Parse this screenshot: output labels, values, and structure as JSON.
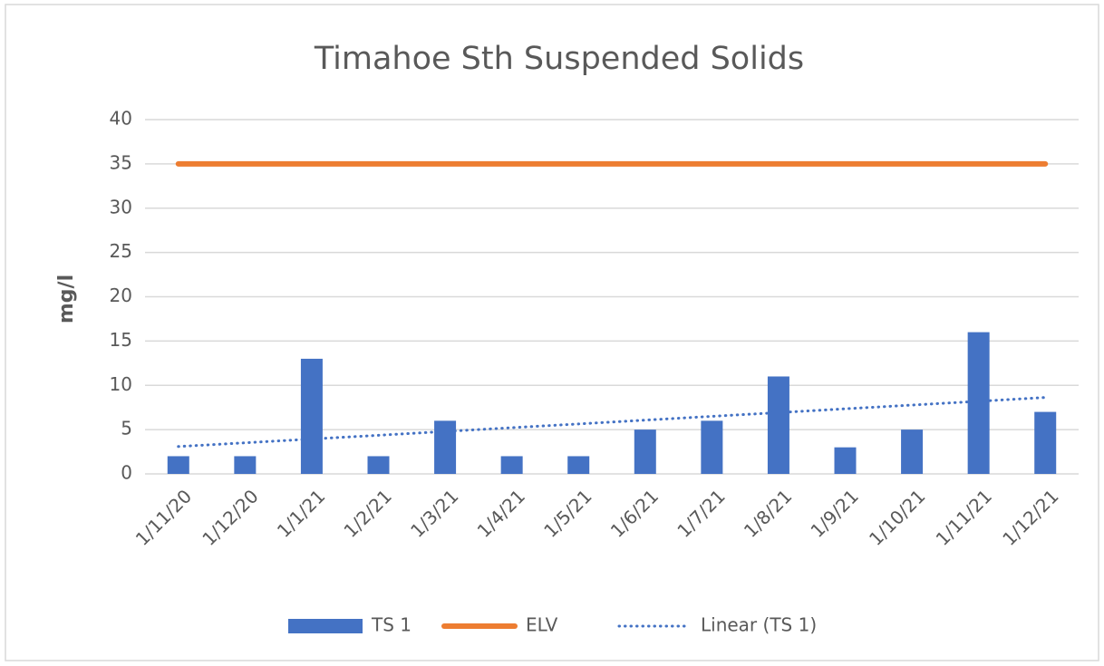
{
  "chart_data": {
    "type": "bar",
    "title": "Timahoe Sth Suspended Solids",
    "y_label": "mg/l",
    "categories": [
      "1/11/20",
      "1/12/20",
      "1/1/21",
      "1/2/21",
      "1/3/21",
      "1/4/21",
      "1/5/21",
      "1/6/21",
      "1/7/21",
      "1/8/21",
      "1/9/21",
      "1/10/21",
      "1/11/21",
      "1/12/21"
    ],
    "series": [
      {
        "name": "TS 1",
        "type": "bar",
        "color": "#4472c4",
        "values": [
          2,
          2,
          13,
          2,
          6,
          2,
          2,
          5,
          6,
          11,
          3,
          5,
          16,
          7
        ]
      },
      {
        "name": "ELV",
        "type": "line",
        "color": "#ed7d31",
        "values": [
          35,
          35,
          35,
          35,
          35,
          35,
          35,
          35,
          35,
          35,
          35,
          35,
          35,
          35
        ]
      },
      {
        "name": "Linear (TS 1)",
        "type": "line",
        "style": "dotted",
        "color": "#4472c4",
        "values": [
          3.09,
          3.51,
          3.94,
          4.36,
          4.79,
          5.22,
          5.64,
          6.07,
          6.5,
          6.92,
          7.35,
          7.77,
          8.2,
          8.63
        ]
      }
    ],
    "ylim": [
      0,
      40
    ],
    "yticks": [
      0,
      5,
      10,
      15,
      20,
      25,
      30,
      35,
      40
    ],
    "grid": true,
    "legend": "bottom"
  }
}
